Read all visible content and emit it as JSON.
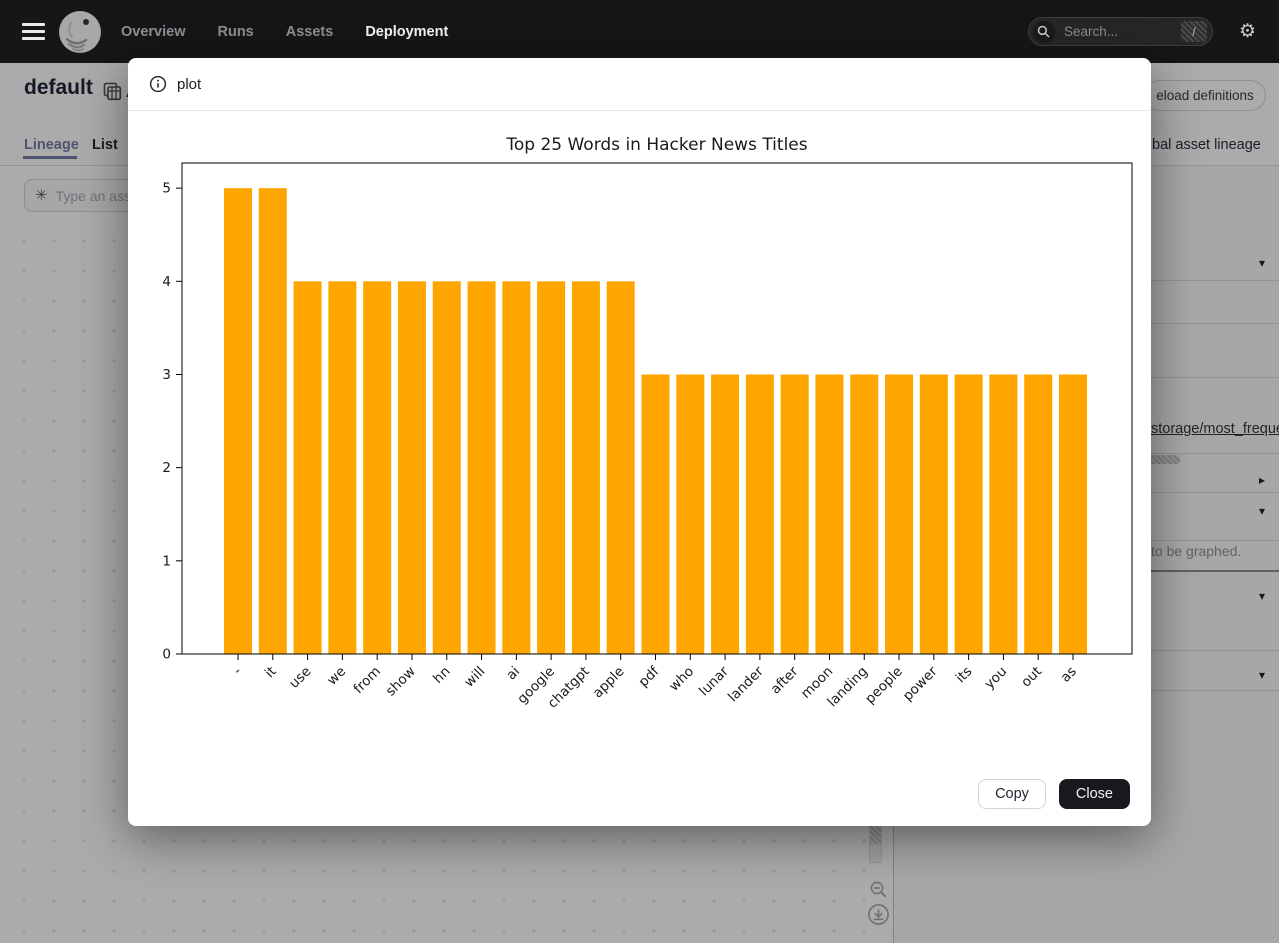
{
  "topnav": {
    "items": [
      {
        "label": "Overview",
        "active": false
      },
      {
        "label": "Runs",
        "active": false
      },
      {
        "label": "Assets",
        "active": false
      },
      {
        "label": "Deployment",
        "active": true
      }
    ],
    "search": {
      "placeholder": "Search...",
      "shortcut": "/"
    }
  },
  "page": {
    "title": "default",
    "title_fragment": "A",
    "tabs": [
      {
        "label": "Lineage",
        "active": true
      },
      {
        "label": "List",
        "active": false
      }
    ],
    "asset_filter_placeholder": "Type an ass",
    "reload_button_label": "eload definitions",
    "asset_lineage_link_label": "bal asset lineage",
    "right_panel": {
      "asset_link": "storage/most_freque",
      "note": "to be graphed."
    }
  },
  "modal": {
    "title": "plot",
    "copy_label": "Copy",
    "close_label": "Close"
  },
  "chart_data": {
    "type": "bar",
    "title": "Top 25 Words in Hacker News Titles",
    "categories": [
      "-",
      "it",
      "use",
      "we",
      "from",
      "show",
      "hn",
      "will",
      "ai",
      "google",
      "chatgpt",
      "apple",
      "pdf",
      "who",
      "lunar",
      "lander",
      "after",
      "moon",
      "landing",
      "people",
      "power",
      "its",
      "you",
      "out",
      "as"
    ],
    "values": [
      5,
      5,
      4,
      4,
      4,
      4,
      4,
      4,
      4,
      4,
      4,
      4,
      3,
      3,
      3,
      3,
      3,
      3,
      3,
      3,
      3,
      3,
      3,
      3,
      3
    ],
    "bar_color": "#FFA500",
    "axis_color": "#000000",
    "xlabel": "",
    "ylabel": "",
    "ylim": [
      0,
      5.27
    ],
    "yticks": [
      0,
      1,
      2,
      3,
      4,
      5
    ],
    "x_tick_rotation": 45,
    "grid": false,
    "legend_position": "none"
  }
}
